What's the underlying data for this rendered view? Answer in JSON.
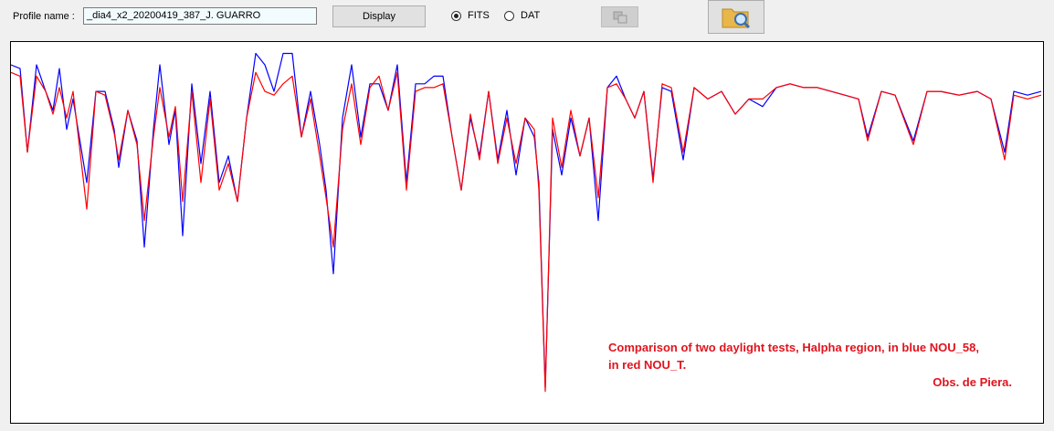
{
  "toolbar": {
    "profile_label": "Profile name :",
    "profile_value": "_dia4_x2_20200419_387_J. GUARRO",
    "display_button": "Display",
    "radio_options": [
      "FITS",
      "DAT"
    ]
  },
  "chart_data": {
    "type": "line",
    "annotations": [
      "Comparison of two daylight tests, Halpha region, in blue NOU_58,",
      "in red NOU_T.",
      "Obs. de Piera."
    ],
    "annotation_color": "#e0141e",
    "xlim": [
      0,
      1130
    ],
    "ylim": [
      0,
      1
    ],
    "x": [
      0,
      10,
      18,
      28,
      38,
      46,
      53,
      61,
      68,
      83,
      93,
      103,
      113,
      118,
      128,
      138,
      146,
      156,
      163,
      173,
      180,
      188,
      198,
      208,
      218,
      228,
      238,
      248,
      258,
      268,
      278,
      288,
      298,
      308,
      318,
      328,
      338,
      345,
      353,
      363,
      373,
      383,
      393,
      403,
      413,
      423,
      433,
      443,
      453,
      463,
      473,
      483,
      493,
      503,
      513,
      523,
      533,
      543,
      553,
      563,
      573,
      578,
      585,
      593,
      603,
      613,
      623,
      633,
      643,
      653,
      663,
      673,
      683,
      693,
      703,
      713,
      723,
      736,
      748,
      763,
      778,
      793,
      808,
      823,
      838,
      853,
      868,
      883,
      898,
      913,
      928,
      938,
      953,
      968,
      988,
      1003,
      1018,
      1038,
      1058,
      1073,
      1088,
      1098,
      1113,
      1128
    ],
    "series": [
      {
        "color": "#0000ff",
        "values": [
          0.94,
          0.93,
          0.71,
          0.94,
          0.87,
          0.82,
          0.93,
          0.77,
          0.85,
          0.63,
          0.87,
          0.87,
          0.77,
          0.67,
          0.82,
          0.74,
          0.46,
          0.77,
          0.94,
          0.73,
          0.82,
          0.49,
          0.89,
          0.68,
          0.87,
          0.63,
          0.7,
          0.58,
          0.8,
          0.97,
          0.94,
          0.87,
          0.97,
          0.97,
          0.75,
          0.87,
          0.73,
          0.61,
          0.39,
          0.8,
          0.94,
          0.75,
          0.89,
          0.89,
          0.82,
          0.94,
          0.63,
          0.89,
          0.89,
          0.91,
          0.91,
          0.75,
          0.61,
          0.8,
          0.7,
          0.87,
          0.69,
          0.82,
          0.65,
          0.8,
          0.75,
          0.63,
          0.09,
          0.77,
          0.65,
          0.8,
          0.7,
          0.8,
          0.53,
          0.88,
          0.91,
          0.85,
          0.8,
          0.87,
          0.64,
          0.88,
          0.87,
          0.69,
          0.88,
          0.85,
          0.87,
          0.81,
          0.85,
          0.83,
          0.88,
          0.89,
          0.88,
          0.88,
          0.87,
          0.86,
          0.85,
          0.75,
          0.87,
          0.86,
          0.74,
          0.87,
          0.87,
          0.86,
          0.87,
          0.85,
          0.71,
          0.87,
          0.86,
          0.87
        ]
      },
      {
        "color": "#ff0000",
        "values": [
          0.92,
          0.91,
          0.71,
          0.91,
          0.87,
          0.81,
          0.88,
          0.8,
          0.87,
          0.56,
          0.87,
          0.86,
          0.76,
          0.69,
          0.82,
          0.73,
          0.53,
          0.75,
          0.88,
          0.75,
          0.83,
          0.58,
          0.87,
          0.63,
          0.85,
          0.61,
          0.68,
          0.58,
          0.8,
          0.92,
          0.87,
          0.86,
          0.89,
          0.91,
          0.75,
          0.85,
          0.7,
          0.59,
          0.46,
          0.77,
          0.89,
          0.73,
          0.88,
          0.91,
          0.82,
          0.92,
          0.61,
          0.87,
          0.88,
          0.88,
          0.89,
          0.75,
          0.61,
          0.81,
          0.69,
          0.87,
          0.68,
          0.8,
          0.68,
          0.8,
          0.77,
          0.61,
          0.08,
          0.8,
          0.67,
          0.82,
          0.7,
          0.8,
          0.59,
          0.88,
          0.89,
          0.85,
          0.8,
          0.87,
          0.63,
          0.89,
          0.88,
          0.71,
          0.88,
          0.85,
          0.87,
          0.81,
          0.85,
          0.85,
          0.88,
          0.89,
          0.88,
          0.88,
          0.87,
          0.86,
          0.85,
          0.74,
          0.87,
          0.86,
          0.73,
          0.87,
          0.87,
          0.86,
          0.87,
          0.85,
          0.69,
          0.86,
          0.85,
          0.86
        ]
      }
    ]
  }
}
